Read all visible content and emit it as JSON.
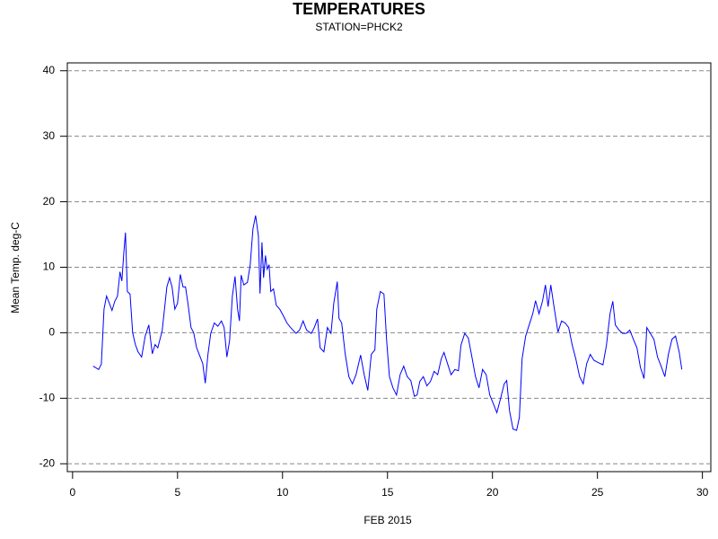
{
  "chart_data": {
    "type": "line",
    "title": "TEMPERATURES",
    "subtitle": "STATION=PHCK2",
    "x_label": "FEB 2015",
    "y_label": "Mean Temp. deg-C",
    "xlim": [
      -0.25,
      30.4
    ],
    "ylim": [
      -21.2,
      41.2
    ],
    "xticks": [
      0,
      5,
      10,
      15,
      20,
      25,
      30
    ],
    "yticks": [
      -20,
      -10,
      0,
      10,
      20,
      30,
      40
    ],
    "grid": true,
    "series": [
      {
        "color": "#0000ff",
        "x": [
          0.98,
          1.24,
          1.37,
          1.5,
          1.62,
          1.75,
          1.88,
          2.01,
          2.14,
          2.26,
          2.35,
          2.44,
          2.52,
          2.61,
          2.74,
          2.86,
          2.99,
          3.12,
          3.29,
          3.46,
          3.63,
          3.8,
          3.93,
          4.06,
          4.27,
          4.49,
          4.62,
          4.74,
          4.87,
          5.0,
          5.13,
          5.26,
          5.38,
          5.51,
          5.64,
          5.77,
          5.9,
          6.07,
          6.2,
          6.32,
          6.45,
          6.58,
          6.75,
          6.92,
          7.09,
          7.22,
          7.35,
          7.48,
          7.61,
          7.74,
          7.86,
          7.95,
          8.03,
          8.16,
          8.33,
          8.46,
          8.59,
          8.72,
          8.85,
          8.93,
          9.02,
          9.1,
          9.19,
          9.27,
          9.36,
          9.44,
          9.57,
          9.7,
          9.87,
          10.04,
          10.21,
          10.38,
          10.64,
          10.81,
          10.98,
          11.15,
          11.37,
          11.5,
          11.67,
          11.79,
          11.97,
          12.14,
          12.31,
          12.44,
          12.61,
          12.69,
          12.82,
          12.99,
          13.16,
          13.33,
          13.5,
          13.72,
          13.89,
          14.06,
          14.23,
          14.4,
          14.49,
          14.66,
          14.83,
          14.96,
          15.09,
          15.26,
          15.43,
          15.6,
          15.77,
          15.94,
          16.11,
          16.28,
          16.41,
          16.54,
          16.71,
          16.88,
          17.05,
          17.22,
          17.39,
          17.56,
          17.69,
          17.86,
          18.03,
          18.21,
          18.38,
          18.5,
          18.68,
          18.85,
          19.02,
          19.19,
          19.36,
          19.53,
          19.7,
          19.87,
          20.04,
          20.21,
          20.38,
          20.56,
          20.68,
          20.81,
          20.98,
          21.15,
          21.28,
          21.41,
          21.58,
          21.75,
          21.92,
          22.05,
          22.22,
          22.39,
          22.52,
          22.65,
          22.78,
          22.95,
          23.12,
          23.29,
          23.46,
          23.63,
          23.8,
          23.97,
          24.15,
          24.32,
          24.49,
          24.66,
          24.83,
          25.0,
          25.26,
          25.43,
          25.6,
          25.73,
          25.85,
          26.03,
          26.2,
          26.37,
          26.54,
          26.71,
          26.88,
          27.05,
          27.22,
          27.35,
          27.52,
          27.69,
          27.86,
          28.03,
          28.21,
          28.38,
          28.55,
          28.72,
          28.89,
          29.02
        ],
        "values": [
          -5.1,
          -5.6,
          -4.8,
          3.6,
          5.6,
          4.5,
          3.4,
          4.8,
          5.6,
          9.3,
          7.9,
          12.1,
          15.3,
          6.3,
          5.9,
          0,
          -1.8,
          -2.9,
          -3.7,
          -0.5,
          1.2,
          -3.2,
          -1.8,
          -2.3,
          0.3,
          7.0,
          8.4,
          7.0,
          3.6,
          4.5,
          8.9,
          7.0,
          7.0,
          4.2,
          0.8,
          0,
          -2.2,
          -3.6,
          -4.7,
          -7.7,
          -3.3,
          -0.1,
          1.5,
          1.0,
          1.8,
          0.8,
          -3.7,
          -1.2,
          5.6,
          8.6,
          3.6,
          1.8,
          8.8,
          7.3,
          7.7,
          10.4,
          15.8,
          17.9,
          14.8,
          6.0,
          13.8,
          8.4,
          11.8,
          9.7,
          10.4,
          6.3,
          6.7,
          4.2,
          3.6,
          2.6,
          1.5,
          0.8,
          -0.1,
          0.4,
          1.8,
          0.4,
          -0.1,
          0.7,
          2.1,
          -2.3,
          -2.9,
          0.8,
          -0.1,
          4.5,
          7.8,
          2.2,
          1.5,
          -3.3,
          -6.7,
          -7.8,
          -6.4,
          -3.4,
          -6.4,
          -8.8,
          -3.3,
          -2.6,
          3.6,
          6.3,
          5.9,
          -1.2,
          -6.7,
          -8.4,
          -9.5,
          -6.4,
          -5.1,
          -6.7,
          -7.3,
          -9.7,
          -9.5,
          -7.4,
          -6.7,
          -8.1,
          -7.4,
          -5.9,
          -6.4,
          -4.0,
          -3.0,
          -4.7,
          -6.4,
          -5.6,
          -5.8,
          -1.9,
          -0.1,
          -0.8,
          -3.7,
          -6.7,
          -8.4,
          -5.6,
          -6.4,
          -9.5,
          -10.8,
          -12.2,
          -10.1,
          -7.8,
          -7.3,
          -11.9,
          -14.7,
          -14.9,
          -12.9,
          -4.0,
          -0.5,
          1.2,
          2.9,
          4.9,
          2.9,
          4.9,
          7.3,
          4.0,
          7.3,
          3.6,
          0.1,
          1.8,
          1.5,
          0.8,
          -1.9,
          -4.0,
          -6.7,
          -7.8,
          -4.7,
          -3.3,
          -4.2,
          -4.5,
          -4.9,
          -1.9,
          2.9,
          4.8,
          1.2,
          0.4,
          -0.1,
          -0.1,
          0.4,
          -1.0,
          -2.3,
          -5.3,
          -7.0,
          0.8,
          -0.1,
          -1.0,
          -3.7,
          -5.1,
          -6.7,
          -3.3,
          -1.0,
          -0.5,
          -2.9,
          -5.6
        ]
      }
    ]
  }
}
